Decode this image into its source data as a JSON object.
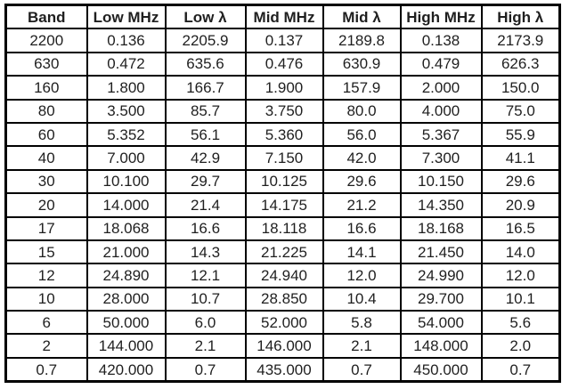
{
  "table": {
    "headers": [
      "Band",
      "Low MHz",
      "Low λ",
      "Mid MHz",
      "Mid λ",
      "High MHz",
      "High λ"
    ],
    "rows": [
      [
        "2200",
        "0.136",
        "2205.9",
        "0.137",
        "2189.8",
        "0.138",
        "2173.9"
      ],
      [
        "630",
        "0.472",
        "635.6",
        "0.476",
        "630.9",
        "0.479",
        "626.3"
      ],
      [
        "160",
        "1.800",
        "166.7",
        "1.900",
        "157.9",
        "2.000",
        "150.0"
      ],
      [
        "80",
        "3.500",
        "85.7",
        "3.750",
        "80.0",
        "4.000",
        "75.0"
      ],
      [
        "60",
        "5.352",
        "56.1",
        "5.360",
        "56.0",
        "5.367",
        "55.9"
      ],
      [
        "40",
        "7.000",
        "42.9",
        "7.150",
        "42.0",
        "7.300",
        "41.1"
      ],
      [
        "30",
        "10.100",
        "29.7",
        "10.125",
        "29.6",
        "10.150",
        "29.6"
      ],
      [
        "20",
        "14.000",
        "21.4",
        "14.175",
        "21.2",
        "14.350",
        "20.9"
      ],
      [
        "17",
        "18.068",
        "16.6",
        "18.118",
        "16.6",
        "18.168",
        "16.5"
      ],
      [
        "15",
        "21.000",
        "14.3",
        "21.225",
        "14.1",
        "21.450",
        "14.0"
      ],
      [
        "12",
        "24.890",
        "12.1",
        "24.940",
        "12.0",
        "24.990",
        "12.0"
      ],
      [
        "10",
        "28.000",
        "10.7",
        "28.850",
        "10.4",
        "29.700",
        "10.1"
      ],
      [
        "6",
        "50.000",
        "6.0",
        "52.000",
        "5.8",
        "54.000",
        "5.6"
      ],
      [
        "2",
        "144.000",
        "2.1",
        "146.000",
        "2.1",
        "148.000",
        "2.0"
      ],
      [
        "0.7",
        "420.000",
        "0.7",
        "435.000",
        "0.7",
        "450.000",
        "0.7"
      ]
    ]
  },
  "chart_data": {
    "type": "table",
    "title": "",
    "columns": [
      "Band",
      "Low MHz",
      "Low λ",
      "Mid MHz",
      "Mid λ",
      "High MHz",
      "High λ"
    ],
    "rows": [
      [
        "2200",
        "0.136",
        "2205.9",
        "0.137",
        "2189.8",
        "0.138",
        "2173.9"
      ],
      [
        "630",
        "0.472",
        "635.6",
        "0.476",
        "630.9",
        "0.479",
        "626.3"
      ],
      [
        "160",
        "1.800",
        "166.7",
        "1.900",
        "157.9",
        "2.000",
        "150.0"
      ],
      [
        "80",
        "3.500",
        "85.7",
        "3.750",
        "80.0",
        "4.000",
        "75.0"
      ],
      [
        "60",
        "5.352",
        "56.1",
        "5.360",
        "56.0",
        "5.367",
        "55.9"
      ],
      [
        "40",
        "7.000",
        "42.9",
        "7.150",
        "42.0",
        "7.300",
        "41.1"
      ],
      [
        "30",
        "10.100",
        "29.7",
        "10.125",
        "29.6",
        "10.150",
        "29.6"
      ],
      [
        "20",
        "14.000",
        "21.4",
        "14.175",
        "21.2",
        "14.350",
        "20.9"
      ],
      [
        "17",
        "18.068",
        "16.6",
        "18.118",
        "16.6",
        "18.168",
        "16.5"
      ],
      [
        "15",
        "21.000",
        "14.3",
        "21.225",
        "14.1",
        "21.450",
        "14.0"
      ],
      [
        "12",
        "24.890",
        "12.1",
        "24.940",
        "12.0",
        "24.990",
        "12.0"
      ],
      [
        "10",
        "28.000",
        "10.7",
        "28.850",
        "10.4",
        "29.700",
        "10.1"
      ],
      [
        "6",
        "50.000",
        "6.0",
        "52.000",
        "5.8",
        "54.000",
        "5.6"
      ],
      [
        "2",
        "144.000",
        "2.1",
        "146.000",
        "2.1",
        "148.000",
        "2.0"
      ],
      [
        "0.7",
        "420.000",
        "0.7",
        "435.000",
        "0.7",
        "450.000",
        "0.7"
      ]
    ],
    "layout_hints": {
      "grid": "all-borders-thick",
      "header_style": "bold",
      "text_align": "center"
    }
  },
  "colors": {
    "border": "#000000",
    "text": "#1f1f1f",
    "background": "#ffffff"
  }
}
